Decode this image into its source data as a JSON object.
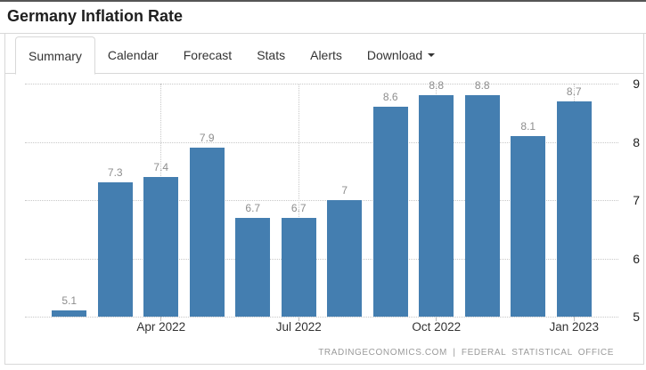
{
  "window": {
    "title": "Germany Inflation Rate"
  },
  "tabs": {
    "items": [
      {
        "label": "Summary",
        "active": true,
        "has_caret": false
      },
      {
        "label": "Calendar",
        "active": false,
        "has_caret": false
      },
      {
        "label": "Forecast",
        "active": false,
        "has_caret": false
      },
      {
        "label": "Stats",
        "active": false,
        "has_caret": false
      },
      {
        "label": "Alerts",
        "active": false,
        "has_caret": false
      },
      {
        "label": "Download",
        "active": false,
        "has_caret": true
      }
    ]
  },
  "chart_data": {
    "type": "bar",
    "title": "Germany Inflation Rate",
    "values": [
      5.1,
      7.3,
      7.4,
      7.9,
      6.7,
      6.7,
      7,
      8.6,
      8.8,
      8.8,
      8.1,
      8.7
    ],
    "bar_labels": [
      "5.1",
      "7.3",
      "7.4",
      "7.9",
      "6.7",
      "6.7",
      "7",
      "8.6",
      "8.8",
      "8.8",
      "8.1",
      "8.7"
    ],
    "x_ticks": [
      {
        "index": 2,
        "label": "Apr 2022"
      },
      {
        "index": 5,
        "label": "Jul 2022"
      },
      {
        "index": 8,
        "label": "Oct 2022"
      },
      {
        "index": 11,
        "label": "Jan 2023"
      }
    ],
    "y_ticks": [
      9,
      8,
      7,
      6,
      5
    ],
    "ylim": [
      5,
      9
    ],
    "grid": true,
    "legend": false,
    "colors": {
      "bar": "#447EB0",
      "gridline": "#c8c8c8",
      "value_label": "#8e8e8e",
      "axis_label": "#222222"
    }
  },
  "footer": {
    "credit": "TRADINGECONOMICS.COM | FEDERAL STATISTICAL OFFICE"
  }
}
